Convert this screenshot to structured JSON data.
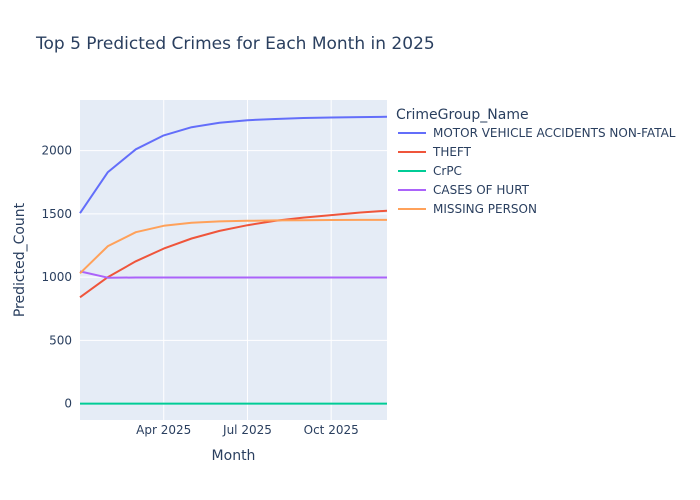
{
  "title": "Top 5 Predicted Crimes for Each Month in 2025",
  "chart_data": {
    "type": "line",
    "title": "Top 5 Predicted Crimes for Each Month in 2025",
    "xlabel": "Month",
    "ylabel": "Predicted_Count",
    "x": [
      "2025-01",
      "2025-02",
      "2025-03",
      "2025-04",
      "2025-05",
      "2025-06",
      "2025-07",
      "2025-08",
      "2025-09",
      "2025-10",
      "2025-11",
      "2025-12"
    ],
    "x_ticks": [
      {
        "label": "Apr 2025",
        "value": "2025-04"
      },
      {
        "label": "Jul 2025",
        "value": "2025-07"
      },
      {
        "label": "Oct 2025",
        "value": "2025-10"
      }
    ],
    "y_ticks": [
      0,
      500,
      1000,
      1500,
      2000
    ],
    "ylim": [
      -130,
      2400
    ],
    "grid": true,
    "legend_title": "CrimeGroup_Name",
    "legend_position": "right",
    "plot_background": "#e5ecf6",
    "series": [
      {
        "name": "MOTOR VEHICLE ACCIDENTS NON-FATAL",
        "color": "#636efa",
        "values": [
          1505,
          1830,
          2010,
          2120,
          2185,
          2220,
          2240,
          2250,
          2258,
          2262,
          2265,
          2267
        ]
      },
      {
        "name": "THEFT",
        "color": "#ef553b",
        "values": [
          840,
          1000,
          1125,
          1225,
          1305,
          1365,
          1410,
          1445,
          1470,
          1490,
          1510,
          1525
        ]
      },
      {
        "name": "CrPC",
        "color": "#00cc96",
        "values": [
          0,
          0,
          0,
          0,
          0,
          0,
          0,
          0,
          0,
          0,
          0,
          0
        ]
      },
      {
        "name": "CASES OF HURT",
        "color": "#ab63fa",
        "values": [
          1045,
          995,
          997,
          997,
          997,
          997,
          997,
          997,
          997,
          997,
          997,
          997
        ]
      },
      {
        "name": "MISSING PERSON",
        "color": "#ffa15a",
        "values": [
          1030,
          1245,
          1355,
          1405,
          1430,
          1440,
          1445,
          1448,
          1450,
          1451,
          1452,
          1452
        ]
      }
    ]
  }
}
